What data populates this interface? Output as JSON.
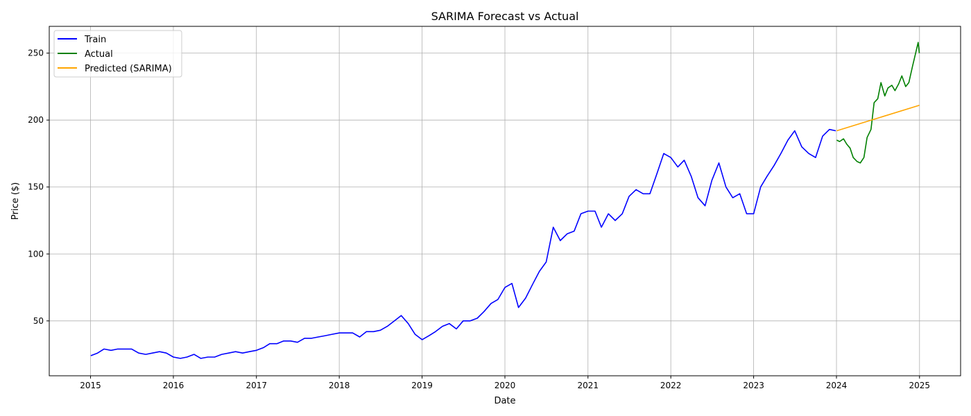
{
  "chart_data": {
    "type": "line",
    "title": "SARIMA Forecast vs Actual",
    "xlabel": "Date",
    "ylabel": "Price ($)",
    "xlim": [
      "2014-07-03",
      "2025-07-01"
    ],
    "ylim": [
      9,
      270
    ],
    "x_ticks": [
      "2015",
      "2016",
      "2017",
      "2018",
      "2019",
      "2020",
      "2021",
      "2022",
      "2023",
      "2024",
      "2025"
    ],
    "y_ticks": [
      50,
      100,
      150,
      200,
      250
    ],
    "grid": true,
    "legend_position": "top-left",
    "series": [
      {
        "name": "Train",
        "color": "#0000ff",
        "points": [
          [
            "2015-01-02",
            24
          ],
          [
            "2015-02-01",
            26
          ],
          [
            "2015-03-01",
            29
          ],
          [
            "2015-04-01",
            28
          ],
          [
            "2015-05-01",
            29
          ],
          [
            "2015-06-01",
            29
          ],
          [
            "2015-07-01",
            29
          ],
          [
            "2015-08-01",
            26
          ],
          [
            "2015-09-01",
            25
          ],
          [
            "2015-10-01",
            26
          ],
          [
            "2015-11-01",
            27
          ],
          [
            "2015-12-01",
            26
          ],
          [
            "2016-01-01",
            23
          ],
          [
            "2016-02-01",
            22
          ],
          [
            "2016-03-01",
            23
          ],
          [
            "2016-04-01",
            25
          ],
          [
            "2016-05-01",
            22
          ],
          [
            "2016-06-01",
            23
          ],
          [
            "2016-07-01",
            23
          ],
          [
            "2016-08-01",
            25
          ],
          [
            "2016-09-01",
            26
          ],
          [
            "2016-10-01",
            27
          ],
          [
            "2016-11-01",
            26
          ],
          [
            "2016-12-01",
            27
          ],
          [
            "2017-01-01",
            28
          ],
          [
            "2017-02-01",
            30
          ],
          [
            "2017-03-01",
            33
          ],
          [
            "2017-04-01",
            33
          ],
          [
            "2017-05-01",
            35
          ],
          [
            "2017-06-01",
            35
          ],
          [
            "2017-07-01",
            34
          ],
          [
            "2017-08-01",
            37
          ],
          [
            "2017-09-01",
            37
          ],
          [
            "2017-10-01",
            38
          ],
          [
            "2017-11-01",
            39
          ],
          [
            "2017-12-01",
            40
          ],
          [
            "2018-01-01",
            41
          ],
          [
            "2018-02-01",
            41
          ],
          [
            "2018-03-01",
            41
          ],
          [
            "2018-04-01",
            38
          ],
          [
            "2018-05-01",
            42
          ],
          [
            "2018-06-01",
            42
          ],
          [
            "2018-07-01",
            43
          ],
          [
            "2018-08-01",
            46
          ],
          [
            "2018-09-01",
            50
          ],
          [
            "2018-10-01",
            54
          ],
          [
            "2018-11-01",
            48
          ],
          [
            "2018-12-01",
            40
          ],
          [
            "2019-01-01",
            36
          ],
          [
            "2019-02-01",
            39
          ],
          [
            "2019-03-01",
            42
          ],
          [
            "2019-04-01",
            46
          ],
          [
            "2019-05-01",
            48
          ],
          [
            "2019-06-01",
            44
          ],
          [
            "2019-07-01",
            50
          ],
          [
            "2019-08-01",
            50
          ],
          [
            "2019-09-01",
            52
          ],
          [
            "2019-10-01",
            57
          ],
          [
            "2019-11-01",
            63
          ],
          [
            "2019-12-01",
            66
          ],
          [
            "2020-01-01",
            75
          ],
          [
            "2020-02-01",
            78
          ],
          [
            "2020-03-01",
            60
          ],
          [
            "2020-04-01",
            67
          ],
          [
            "2020-05-01",
            77
          ],
          [
            "2020-06-01",
            87
          ],
          [
            "2020-07-01",
            94
          ],
          [
            "2020-08-01",
            120
          ],
          [
            "2020-09-01",
            110
          ],
          [
            "2020-10-01",
            115
          ],
          [
            "2020-11-01",
            117
          ],
          [
            "2020-12-01",
            130
          ],
          [
            "2021-01-01",
            132
          ],
          [
            "2021-02-01",
            132
          ],
          [
            "2021-03-01",
            120
          ],
          [
            "2021-04-01",
            130
          ],
          [
            "2021-05-01",
            125
          ],
          [
            "2021-06-01",
            130
          ],
          [
            "2021-07-01",
            143
          ],
          [
            "2021-08-01",
            148
          ],
          [
            "2021-09-01",
            145
          ],
          [
            "2021-10-01",
            145
          ],
          [
            "2021-11-01",
            160
          ],
          [
            "2021-12-01",
            175
          ],
          [
            "2022-01-01",
            172
          ],
          [
            "2022-02-01",
            165
          ],
          [
            "2022-03-01",
            170
          ],
          [
            "2022-04-01",
            158
          ],
          [
            "2022-05-01",
            142
          ],
          [
            "2022-06-01",
            136
          ],
          [
            "2022-07-01",
            155
          ],
          [
            "2022-08-01",
            168
          ],
          [
            "2022-09-01",
            150
          ],
          [
            "2022-10-01",
            142
          ],
          [
            "2022-11-01",
            145
          ],
          [
            "2022-12-01",
            130
          ],
          [
            "2023-01-01",
            130
          ],
          [
            "2023-02-01",
            150
          ],
          [
            "2023-03-01",
            158
          ],
          [
            "2023-04-01",
            166
          ],
          [
            "2023-05-01",
            175
          ],
          [
            "2023-06-01",
            185
          ],
          [
            "2023-07-01",
            192
          ],
          [
            "2023-08-01",
            180
          ],
          [
            "2023-09-01",
            175
          ],
          [
            "2023-10-01",
            172
          ],
          [
            "2023-11-01",
            188
          ],
          [
            "2023-12-01",
            193
          ],
          [
            "2023-12-29",
            192
          ]
        ]
      },
      {
        "name": "Actual",
        "color": "#008000",
        "points": [
          [
            "2024-01-02",
            185
          ],
          [
            "2024-01-15",
            184
          ],
          [
            "2024-02-01",
            186
          ],
          [
            "2024-02-15",
            182
          ],
          [
            "2024-03-01",
            179
          ],
          [
            "2024-03-15",
            172
          ],
          [
            "2024-04-01",
            169
          ],
          [
            "2024-04-15",
            168
          ],
          [
            "2024-05-01",
            172
          ],
          [
            "2024-05-15",
            187
          ],
          [
            "2024-06-01",
            193
          ],
          [
            "2024-06-15",
            213
          ],
          [
            "2024-07-01",
            216
          ],
          [
            "2024-07-15",
            228
          ],
          [
            "2024-08-01",
            218
          ],
          [
            "2024-08-15",
            224
          ],
          [
            "2024-09-01",
            226
          ],
          [
            "2024-09-15",
            222
          ],
          [
            "2024-10-01",
            227
          ],
          [
            "2024-10-15",
            233
          ],
          [
            "2024-11-01",
            225
          ],
          [
            "2024-11-15",
            228
          ],
          [
            "2024-12-01",
            240
          ],
          [
            "2024-12-15",
            250
          ],
          [
            "2024-12-26",
            258
          ],
          [
            "2024-12-31",
            250
          ]
        ]
      },
      {
        "name": "Predicted (SARIMA)",
        "color": "#ffa500",
        "points": [
          [
            "2024-01-02",
            192
          ],
          [
            "2024-12-31",
            211
          ]
        ]
      }
    ]
  }
}
